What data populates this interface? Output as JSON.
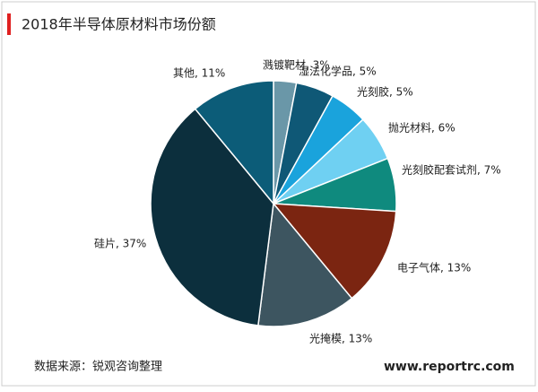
{
  "chart_data": {
    "type": "pie",
    "title": "2018年半导体原材料市场份额",
    "categories": [
      "溅镀靶材, 3%",
      "湿法化学品, 5%",
      "光刻胶, 5%",
      "抛光材料, 6%",
      "光刻胶配套试剂, 7%",
      "电子气体, 13%",
      "光掩模, 13%",
      "硅片, 37%",
      "其他, 11%"
    ],
    "values": [
      3,
      5,
      5,
      6,
      7,
      13,
      13,
      37,
      11
    ],
    "colors": [
      "#6a97a8",
      "#0f5876",
      "#1aa3dc",
      "#6fd0f2",
      "#0f8a7e",
      "#7b2511",
      "#3d5560",
      "#0c2f3d",
      "#0c5c78"
    ],
    "source": "数据来源：锐观咨询整理",
    "website": "www.reportrc.com"
  }
}
